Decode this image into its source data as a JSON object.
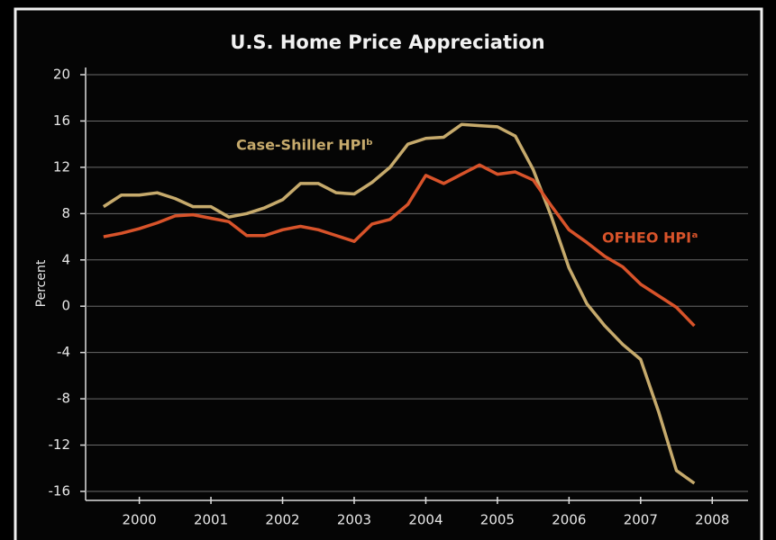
{
  "chart_data": {
    "type": "line",
    "title": "U.S. Home Price Appreciation",
    "y_label": "Percent",
    "x": [
      2000,
      2000.25,
      2000.5,
      2000.75,
      2001,
      2001.25,
      2001.5,
      2001.75,
      2002,
      2002.25,
      2002.5,
      2002.75,
      2003,
      2003.25,
      2003.5,
      2003.75,
      2004,
      2004.25,
      2004.5,
      2004.75,
      2005,
      2005.25,
      2005.5,
      2005.75,
      2006,
      2006.25,
      2006.5,
      2006.75,
      2007,
      2007.25,
      2007.5,
      2007.75,
      2008,
      2008.25
    ],
    "series": [
      {
        "name": "Case-Shiller HPIᵇ",
        "color": "#c6aa6c",
        "values": [
          8.6,
          9.6,
          9.6,
          9.8,
          9.3,
          8.6,
          8.6,
          7.7,
          8.0,
          8.5,
          9.2,
          10.6,
          10.6,
          9.8,
          9.7,
          10.7,
          12.0,
          14.0,
          14.5,
          14.6,
          15.7,
          15.6,
          15.5,
          14.7,
          11.8,
          7.8,
          3.3,
          0.2,
          -1.7,
          -3.3,
          -4.6,
          -9.1,
          -14.2,
          -15.3
        ]
      },
      {
        "name": "OFHEO HPIᵃ",
        "color": "#d8532a",
        "values": [
          6.0,
          6.3,
          6.7,
          7.2,
          7.8,
          7.9,
          7.6,
          7.3,
          6.1,
          6.1,
          6.6,
          6.9,
          6.6,
          6.1,
          5.6,
          7.1,
          7.5,
          8.8,
          11.3,
          10.6,
          11.4,
          12.2,
          11.4,
          11.6,
          10.9,
          8.7,
          6.6,
          5.5,
          4.3,
          3.4,
          1.9,
          0.9,
          -0.1,
          -1.7
        ]
      }
    ],
    "xlim": [
      1999.75,
      2009
    ],
    "xticks": [
      {
        "value": 2000.5,
        "label": "2000"
      },
      {
        "value": 2001.5,
        "label": "2001"
      },
      {
        "value": 2002.5,
        "label": "2002"
      },
      {
        "value": 2003.5,
        "label": "2003"
      },
      {
        "value": 2004.5,
        "label": "2004"
      },
      {
        "value": 2005.5,
        "label": "2005"
      },
      {
        "value": 2006.5,
        "label": "2006"
      },
      {
        "value": 2007.5,
        "label": "2007"
      },
      {
        "value": 2008.5,
        "label": "2008"
      }
    ],
    "ylim": [
      -16,
      20
    ],
    "yticks": [
      -16,
      -12,
      -8,
      -4,
      0,
      4,
      8,
      12,
      16,
      20
    ],
    "grid": true
  }
}
